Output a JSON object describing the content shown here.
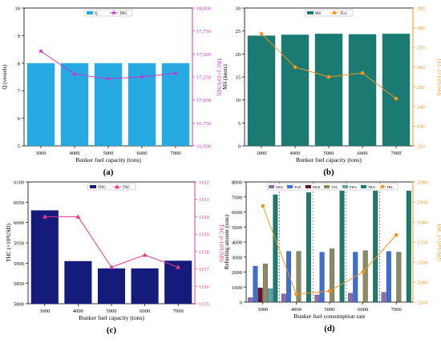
{
  "chart_data": [
    {
      "type": "bar",
      "panel_label": "(a)",
      "categories": [
        "3000",
        "4000",
        "5000",
        "6000",
        "7000"
      ],
      "xlabel": "Bunker fuel capacity (tons)",
      "ylabel": "Q (vessels)",
      "y2label": "TRC (×10⁴USD)",
      "ylim": [
        5,
        10
      ],
      "yticks": [
        "5",
        "6",
        "7",
        "8",
        "9",
        "10"
      ],
      "y2lim": [
        16500,
        18000
      ],
      "y2ticks": [
        "16,500",
        "16,750",
        "17,000",
        "17,250",
        "17,500",
        "17,750",
        "18,000"
      ],
      "legend": [
        "Q",
        "TRC"
      ],
      "legend_position": "top-center",
      "colors": {
        "bar": "#27aae1",
        "line": "#cc33cc",
        "axis_right": "#cc33cc"
      },
      "series": [
        {
          "name": "Q",
          "kind": "bar",
          "values": [
            8,
            8,
            8,
            8,
            8
          ]
        },
        {
          "name": "TRC",
          "kind": "line",
          "axis": "right",
          "values": [
            17530,
            17280,
            17230,
            17250,
            17290
          ]
        }
      ]
    },
    {
      "type": "bar",
      "panel_label": "(b)",
      "categories": [
        "3000",
        "4000",
        "5000",
        "6000",
        "7000"
      ],
      "xlabel": "Bunker fuel capacity (tons)",
      "ylabel": "MS (knots)",
      "y2label": "TLC (×10⁴USD)",
      "ylim": [
        0,
        30
      ],
      "yticks": [
        "0",
        "5",
        "10",
        "15",
        "20",
        "25",
        "30"
      ],
      "y2lim": [
        220,
        290
      ],
      "y2ticks": [
        "220",
        "230",
        "240",
        "250",
        "260",
        "270",
        "280",
        "290"
      ],
      "legend": [
        "MS",
        "TLC"
      ],
      "legend_position": "top-center",
      "colors": {
        "bar": "#1b7a72",
        "line": "#f7941d",
        "axis_right": "#f7941d"
      },
      "series": [
        {
          "name": "MS",
          "kind": "bar",
          "values": [
            24.0,
            24.2,
            24.4,
            24.3,
            24.4
          ]
        },
        {
          "name": "TLC",
          "kind": "line",
          "axis": "right",
          "values": [
            277,
            260,
            255,
            257,
            244
          ]
        }
      ]
    },
    {
      "type": "bar",
      "panel_label": "(c)",
      "categories": [
        "3000",
        "4000",
        "5000",
        "6000",
        "7000"
      ],
      "xlabel": "Bunker fuel capacity (tons)",
      "ylabel": "THC (×10⁴USD)",
      "y2label": "TAC (×10⁴USD)",
      "ylim": [
        5800,
        6100
      ],
      "yticks": [
        "5800",
        "5850",
        "5900",
        "5950",
        "6000",
        "6050",
        "6100"
      ],
      "y2lim": [
        1155,
        1162
      ],
      "y2ticks": [
        "1155",
        "1156",
        "1157",
        "1158",
        "1159",
        "1160",
        "1161",
        "1162"
      ],
      "legend": [
        "THC",
        "TAC"
      ],
      "legend_position": "top-center",
      "colors": {
        "bar": "#141b7a",
        "line": "#e8388a",
        "axis_right": "#e8388a"
      },
      "series": [
        {
          "name": "THC",
          "kind": "bar",
          "values": [
            6030,
            5905,
            5887,
            5887,
            5906
          ]
        },
        {
          "name": "TAC",
          "kind": "line",
          "axis": "right",
          "values": [
            1160.0,
            1160.0,
            1157.1,
            1157.8,
            1157.1
          ]
        }
      ]
    },
    {
      "type": "bar",
      "panel_label": "(d)",
      "categories": [
        "3000",
        "4000",
        "5000",
        "6000",
        "7000"
      ],
      "xlabel": "Bunker fuel consumption rate",
      "ylabel": "Refueling amount (tons)",
      "y2label": "TBC (×10⁴USD)",
      "ylim": [
        0,
        8000
      ],
      "yticks": [
        "0",
        "1000",
        "2000",
        "3000",
        "4000",
        "5000",
        "6000",
        "7000",
        "8000"
      ],
      "y2lim": [
        2260,
        2380
      ],
      "y2ticks": [
        "2260",
        "2280",
        "2300",
        "2320",
        "2340",
        "2360",
        "2380"
      ],
      "legend": [
        "SHA",
        "SGP",
        "DKK",
        "VEL",
        "PKG",
        "TRA",
        "TBC"
      ],
      "legend_position": "top",
      "colors": {
        "axis_right": "#f7941d"
      },
      "series": [
        {
          "name": "SHA",
          "kind": "bar",
          "color": "#8e6bb0",
          "values": [
            300,
            550,
            480,
            600,
            650
          ]
        },
        {
          "name": "SGP",
          "kind": "bar",
          "color": "#3b6fd1",
          "values": [
            2400,
            3380,
            3320,
            3330,
            3370
          ]
        },
        {
          "name": "DKK",
          "kind": "bar",
          "color": "#6b0f2a",
          "values": [
            950,
            0,
            0,
            0,
            0
          ]
        },
        {
          "name": "VEL",
          "kind": "bar",
          "color": "#8a8a63",
          "values": [
            2550,
            3380,
            3550,
            3430,
            3330
          ]
        },
        {
          "name": "PKG",
          "kind": "bar",
          "color": "#5fa3a8",
          "values": [
            900,
            0,
            0,
            0,
            0
          ]
        },
        {
          "name": "TRA",
          "kind": "bar",
          "color": "#1a7c6e",
          "values": [
            7150,
            7300,
            7400,
            7400,
            7400
          ]
        },
        {
          "name": "TBC",
          "kind": "line",
          "axis": "right",
          "color": "#f7941d",
          "values": [
            2356,
            2268,
            2271,
            2290,
            2327
          ]
        }
      ]
    }
  ]
}
